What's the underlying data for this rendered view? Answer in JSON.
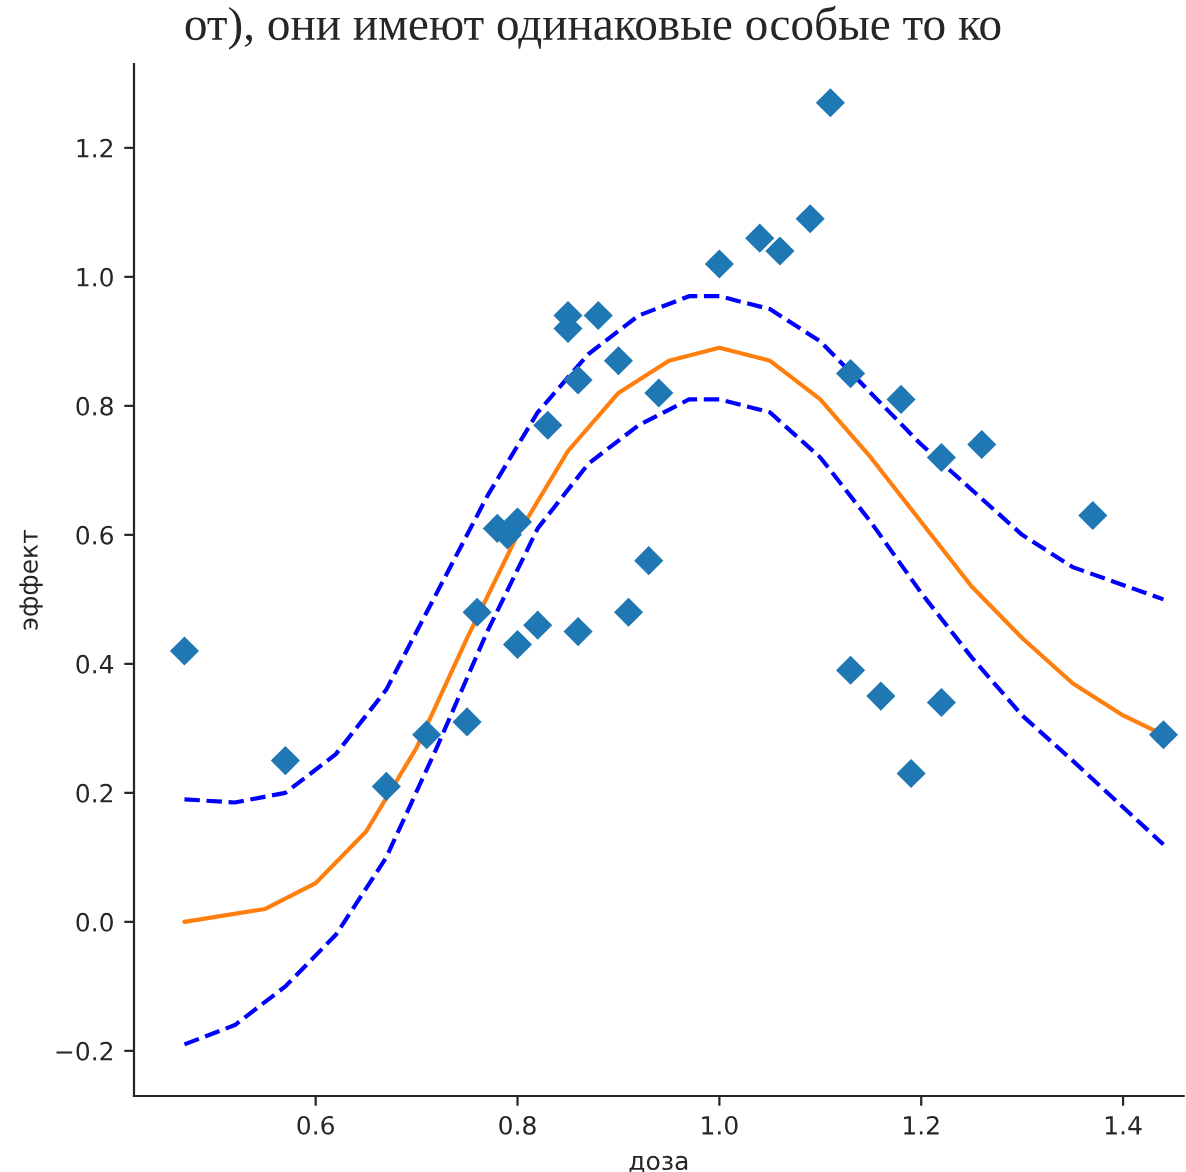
{
  "chart_data": {
    "type": "scatter",
    "xlabel": "доза",
    "ylabel": "эффект",
    "annotations": [
      "от), они имеют одинаковые особые то ко"
    ],
    "xlim": [
      0.42,
      1.46
    ],
    "ylim": [
      -0.27,
      1.33
    ],
    "xticks": [
      0.6,
      0.8,
      {
        "value": 1.0,
        "label": "1.0"
      },
      1.2,
      1.4
    ],
    "yticks": [
      {
        "value": -0.2,
        "label": "−0.2"
      },
      {
        "value": 0.0,
        "label": "0.0"
      },
      0.2,
      0.4,
      0.6,
      0.8,
      {
        "value": 1.0,
        "label": "1.0"
      },
      1.2
    ],
    "grid": false,
    "legend": false,
    "series": [
      {
        "marker": "diamond",
        "color": "#1f77b4",
        "x": [
          0.47,
          0.57,
          0.67,
          0.71,
          0.75,
          0.76,
          0.78,
          0.79,
          0.8,
          0.8,
          0.82,
          0.83,
          0.85,
          0.85,
          0.86,
          0.86,
          0.88,
          0.9,
          0.91,
          0.93,
          0.94,
          1.0,
          1.04,
          1.06,
          1.09,
          1.11,
          1.13,
          1.13,
          1.16,
          1.18,
          1.19,
          1.22,
          1.22,
          1.26,
          1.37,
          1.44
        ],
        "values": [
          0.42,
          0.25,
          0.21,
          0.29,
          0.31,
          0.48,
          0.61,
          0.6,
          0.62,
          0.43,
          0.46,
          0.77,
          0.94,
          0.92,
          0.84,
          0.45,
          0.94,
          0.87,
          0.48,
          0.56,
          0.82,
          1.02,
          1.06,
          1.04,
          1.09,
          1.27,
          0.85,
          0.39,
          0.35,
          0.81,
          0.23,
          0.72,
          0.34,
          0.74,
          0.63,
          0.29
        ]
      },
      {
        "type": "line",
        "line_style": "solid",
        "color": "#ff7f0e",
        "x": [
          0.47,
          0.55,
          0.6,
          0.65,
          0.7,
          0.75,
          0.8,
          0.85,
          0.9,
          0.95,
          1.0,
          1.05,
          1.1,
          1.15,
          1.2,
          1.25,
          1.3,
          1.35,
          1.4,
          1.44
        ],
        "values": [
          0.0,
          0.02,
          0.06,
          0.14,
          0.27,
          0.44,
          0.6,
          0.73,
          0.82,
          0.87,
          0.89,
          0.87,
          0.81,
          0.72,
          0.62,
          0.52,
          0.44,
          0.37,
          0.32,
          0.29
        ]
      },
      {
        "type": "line",
        "line_style": "dashed",
        "color": "#0000ff",
        "x": [
          0.47,
          0.52,
          0.57,
          0.62,
          0.67,
          0.72,
          0.77,
          0.82,
          0.87,
          0.92,
          0.97,
          1.0,
          1.05,
          1.1,
          1.15,
          1.2,
          1.25,
          1.3,
          1.35,
          1.44
        ],
        "values": [
          0.19,
          0.185,
          0.2,
          0.26,
          0.36,
          0.51,
          0.66,
          0.79,
          0.88,
          0.94,
          0.97,
          0.97,
          0.95,
          0.9,
          0.82,
          0.74,
          0.67,
          0.6,
          0.55,
          0.5
        ]
      },
      {
        "type": "line",
        "line_style": "dashed",
        "color": "#0000ff",
        "x": [
          0.47,
          0.52,
          0.57,
          0.62,
          0.67,
          0.72,
          0.77,
          0.82,
          0.87,
          0.92,
          0.97,
          1.0,
          1.05,
          1.1,
          1.15,
          1.2,
          1.25,
          1.3,
          1.35,
          1.44
        ],
        "values": [
          -0.19,
          -0.16,
          -0.1,
          -0.02,
          0.1,
          0.27,
          0.45,
          0.61,
          0.71,
          0.77,
          0.81,
          0.81,
          0.79,
          0.72,
          0.62,
          0.51,
          0.41,
          0.32,
          0.25,
          0.12
        ]
      }
    ]
  }
}
